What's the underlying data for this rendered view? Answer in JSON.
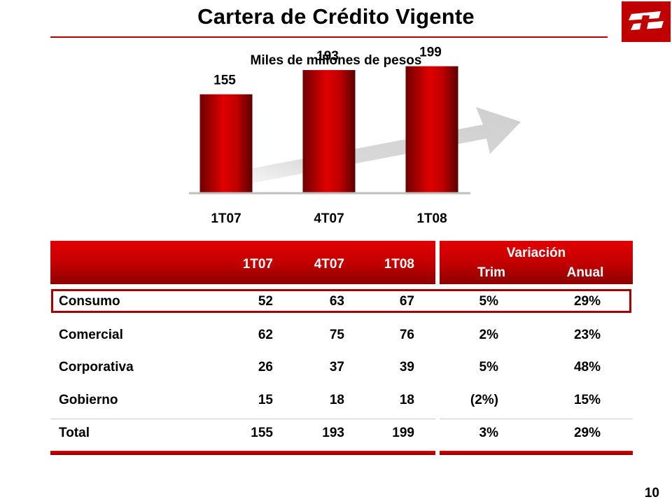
{
  "page": {
    "title": "Cartera de Crédito Vigente",
    "subtitle": "Miles de millones de pesos",
    "page_number": "10"
  },
  "colors": {
    "accent": "#c00000",
    "dark_red": "#7a0000",
    "arrow_gray": "#d9d9d9"
  },
  "chart_data": {
    "type": "bar",
    "title": "Miles de millones de pesos",
    "categories": [
      "1T07",
      "4T07",
      "1T08"
    ],
    "values": [
      155,
      193,
      199
    ],
    "data_labels": [
      "155",
      "193",
      "199"
    ],
    "ylim": [
      0,
      260
    ],
    "grid": false,
    "legend": "none"
  },
  "table": {
    "columns": [
      "1T07",
      "4T07",
      "1T08"
    ],
    "variation_header": "Variación",
    "variation_columns": [
      "Trim",
      "Anual"
    ],
    "rows": [
      {
        "label": "Consumo",
        "values": [
          "52",
          "63",
          "67"
        ],
        "trim": "5%",
        "anual": "29%"
      },
      {
        "label": "Comercial",
        "values": [
          "62",
          "75",
          "76"
        ],
        "trim": "2%",
        "anual": "23%"
      },
      {
        "label": "Corporativa",
        "values": [
          "26",
          "37",
          "39"
        ],
        "trim": "5%",
        "anual": "48%"
      },
      {
        "label": "Gobierno",
        "values": [
          "15",
          "18",
          "18"
        ],
        "trim": "(2%)",
        "anual": "15%"
      },
      {
        "label": "Total",
        "values": [
          "155",
          "193",
          "199"
        ],
        "trim": "3%",
        "anual": "29%"
      }
    ]
  }
}
